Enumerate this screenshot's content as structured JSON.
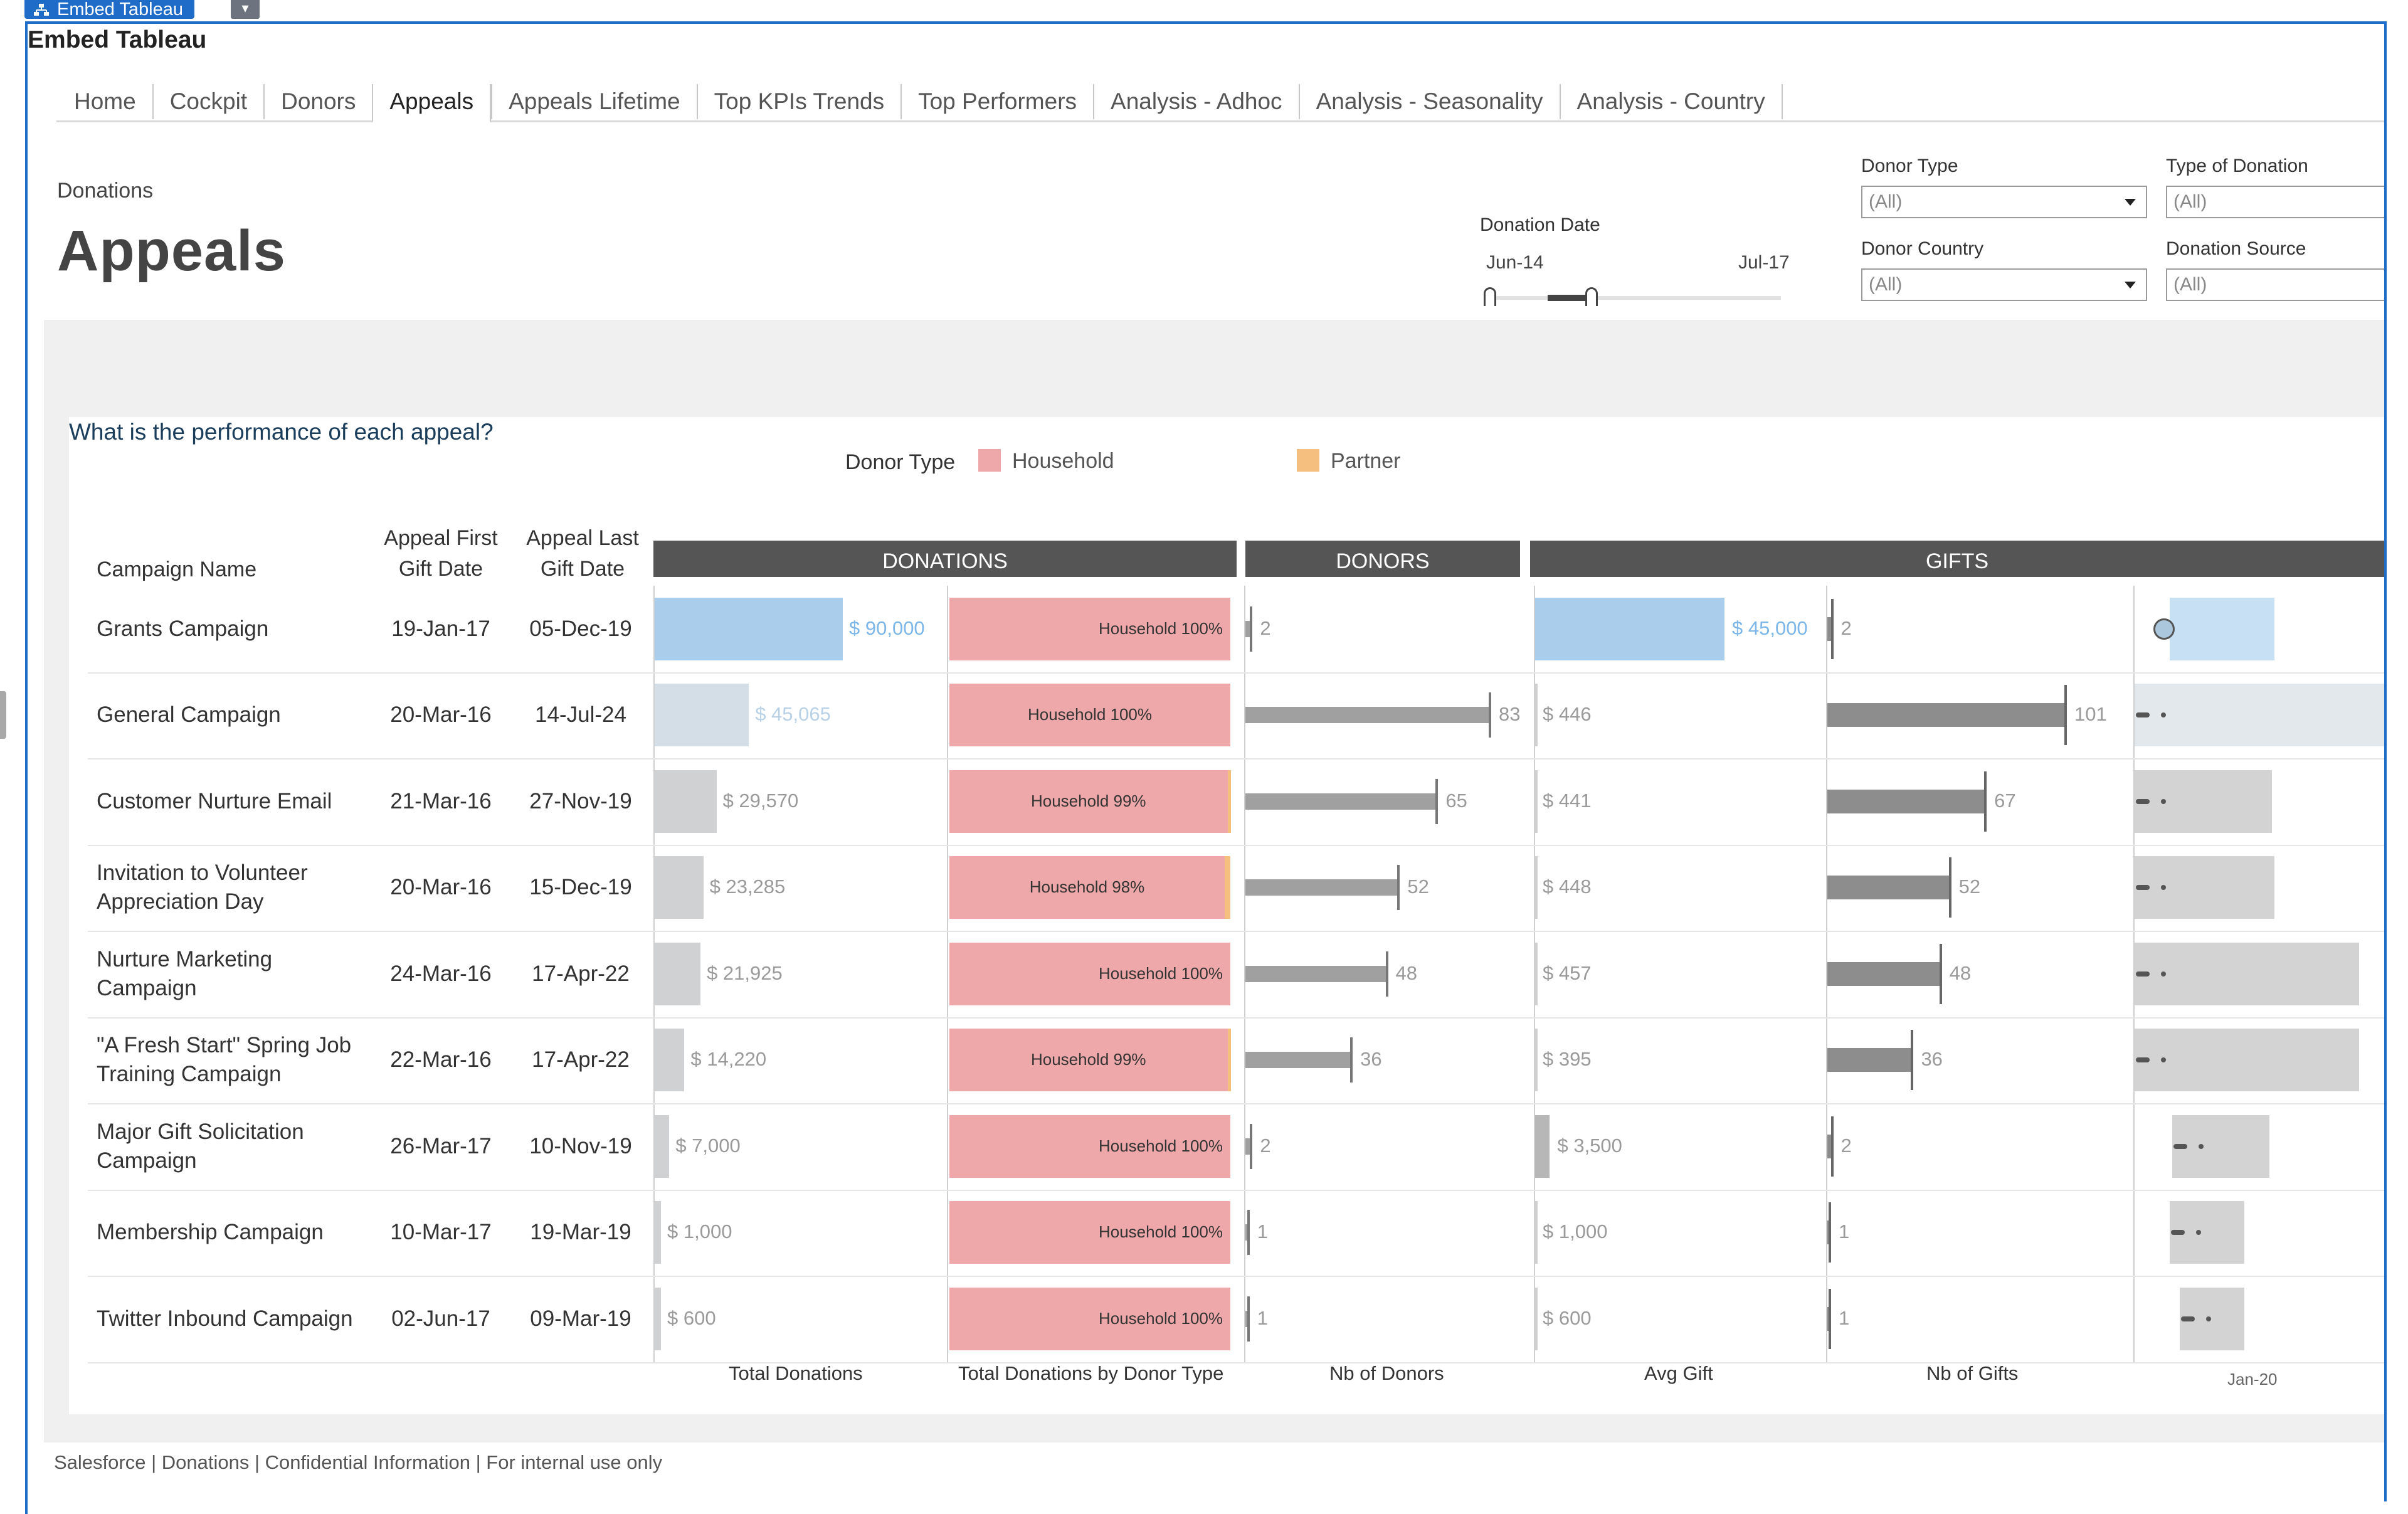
{
  "app": {
    "tab_title": "Embed Tableau",
    "embed_title": "Embed Tableau"
  },
  "nav": {
    "tabs": [
      "Home",
      "Cockpit",
      "Donors",
      "Appeals",
      "Appeals Lifetime",
      "Top KPIs Trends",
      "Top Performers",
      "Analysis - Adhoc",
      "Analysis - Seasonality",
      "Analysis - Country"
    ],
    "active": "Appeals"
  },
  "header": {
    "subtitle": "Donations",
    "title": "Appeals"
  },
  "filters": {
    "donation_date": {
      "label": "Donation Date",
      "from": "Jun-14",
      "to": "Jul-17"
    },
    "donor_type": {
      "label": "Donor Type",
      "value": "(All)"
    },
    "type_of_donation": {
      "label": "Type of Donation",
      "value": "(All)"
    },
    "donor_country": {
      "label": "Donor Country",
      "value": "(All)"
    },
    "donation_source": {
      "label": "Donation Source",
      "value": "(All)"
    }
  },
  "chart": {
    "question": "What is the performance of each appeal?",
    "legend_title": "Donor Type",
    "legend": [
      {
        "label": "Household",
        "color": "#eea8aa"
      },
      {
        "label": "Partner",
        "color": "#f5c07f"
      }
    ],
    "columns": {
      "campaign": "Campaign Name",
      "first_gift": "Appeal First Gift Date",
      "last_gift": "Appeal Last Gift Date"
    },
    "bands": [
      "DONATIONS",
      "DONORS",
      "GIFTS"
    ],
    "footers": [
      "Total Donations",
      "Total Donations by Donor Type",
      "Nb of Donors",
      "Avg Gift",
      "Nb of Gifts",
      "Jan-20"
    ]
  },
  "chart_data": {
    "type": "table",
    "rows": [
      {
        "campaign": "Grants Campaign",
        "first": "19-Jan-17",
        "last": "05-Dec-19",
        "total": 90000,
        "total_label": "$ 90,000",
        "hh_label": "Household 100%",
        "hh_pct": 100,
        "donors": 2,
        "avg": 45000,
        "avg_label": "$ 45,000",
        "gifts": 2,
        "span_start": 0.14,
        "span_end": 0.56
      },
      {
        "campaign": "General Campaign",
        "first": "20-Mar-16",
        "last": "14-Jul-24",
        "total": 45065,
        "total_label": "$ 45,065",
        "hh_label": "Household 100%",
        "hh_pct": 100,
        "donors": 83,
        "avg": 446,
        "avg_label": "$ 446",
        "gifts": 101,
        "span_start": 0.0,
        "span_end": 1.0
      },
      {
        "campaign": "Customer Nurture Email",
        "first": "21-Mar-16",
        "last": "27-Nov-19",
        "total": 29570,
        "total_label": "$ 29,570",
        "hh_label": "Household 99%",
        "hh_pct": 99,
        "donors": 65,
        "avg": 441,
        "avg_label": "$ 441",
        "gifts": 67,
        "span_start": 0.0,
        "span_end": 0.55
      },
      {
        "campaign": "Invitation to Volunteer Appreciation Day",
        "first": "20-Mar-16",
        "last": "15-Dec-19",
        "total": 23285,
        "total_label": "$ 23,285",
        "hh_label": "Household 98%",
        "hh_pct": 98,
        "donors": 52,
        "avg": 448,
        "avg_label": "$ 448",
        "gifts": 52,
        "span_start": 0.0,
        "span_end": 0.56
      },
      {
        "campaign": "Nurture Marketing Campaign",
        "first": "24-Mar-16",
        "last": "17-Apr-22",
        "total": 21925,
        "total_label": "$ 21,925",
        "hh_label": "Household 100%",
        "hh_pct": 100,
        "donors": 48,
        "avg": 457,
        "avg_label": "$ 457",
        "gifts": 48,
        "span_start": 0.0,
        "span_end": 0.9
      },
      {
        "campaign": "\"A Fresh Start\" Spring Job Training Campaign",
        "first": "22-Mar-16",
        "last": "17-Apr-22",
        "total": 14220,
        "total_label": "$ 14,220",
        "hh_label": "Household 99%",
        "hh_pct": 99,
        "donors": 36,
        "avg": 395,
        "avg_label": "$ 395",
        "gifts": 36,
        "span_start": 0.0,
        "span_end": 0.9
      },
      {
        "campaign": "Major Gift Solicitation Campaign",
        "first": "26-Mar-17",
        "last": "10-Nov-19",
        "total": 7000,
        "total_label": "$ 7,000",
        "hh_label": "Household 100%",
        "hh_pct": 100,
        "donors": 2,
        "avg": 3500,
        "avg_label": "$ 3,500",
        "gifts": 2,
        "span_start": 0.15,
        "span_end": 0.54
      },
      {
        "campaign": "Membership Campaign",
        "first": "10-Mar-17",
        "last": "19-Mar-19",
        "total": 1000,
        "total_label": "$ 1,000",
        "hh_label": "Household 100%",
        "hh_pct": 100,
        "donors": 1,
        "avg": 1000,
        "avg_label": "$ 1,000",
        "gifts": 1,
        "span_start": 0.14,
        "span_end": 0.44
      },
      {
        "campaign": "Twitter Inbound Campaign",
        "first": "02-Jun-17",
        "last": "09-Mar-19",
        "total": 600,
        "total_label": "$ 600",
        "hh_label": "Household 100%",
        "hh_pct": 100,
        "donors": 1,
        "avg": 600,
        "avg_label": "$ 600",
        "gifts": 1,
        "span_start": 0.18,
        "span_end": 0.44
      }
    ]
  },
  "footer": {
    "text": "Salesforce | Donations | Confidential Information | For internal use only"
  },
  "colors": {
    "accent_blue": "#1f6cc8",
    "highlight_blue": "#a9cdea",
    "household": "#eea8aa",
    "partner": "#f5c07f",
    "band_header": "#555555"
  }
}
